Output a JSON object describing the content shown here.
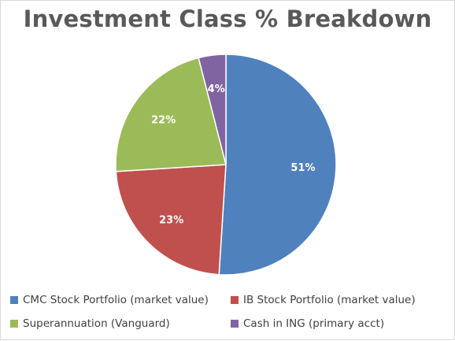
{
  "chart_data": {
    "type": "pie",
    "title": "Investment Class % Breakdown",
    "categories": [
      "CMC Stock Portfolio (market value)",
      "IB Stock Portfolio (market value)",
      "Superannuation (Vanguard)",
      "Cash in ING (primary acct)"
    ],
    "values": [
      51,
      23,
      22,
      4
    ],
    "data_labels": [
      "51%",
      "23%",
      "22%",
      "4%"
    ],
    "colors": [
      "#4f81bd",
      "#c0504d",
      "#9bbb59",
      "#8064a2"
    ],
    "legend_position": "bottom"
  }
}
